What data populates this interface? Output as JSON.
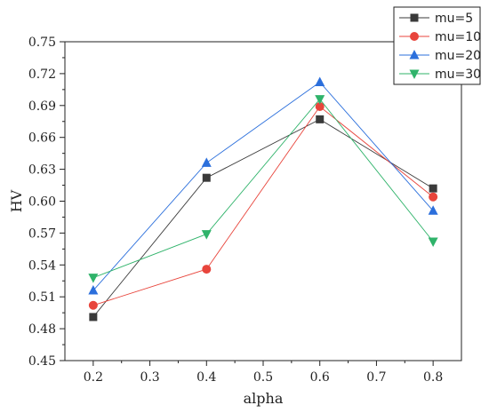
{
  "chart_data": {
    "type": "line",
    "xlabel": "alpha",
    "ylabel": "HV",
    "x": [
      0.2,
      0.4,
      0.6,
      0.8
    ],
    "xlim": [
      0.15,
      0.85
    ],
    "ylim": [
      0.45,
      0.75
    ],
    "xticks": [
      "0.2",
      "0.3",
      "0.4",
      "0.5",
      "0.6",
      "0.7",
      "0.8"
    ],
    "yticks": [
      "0.45",
      "0.48",
      "0.51",
      "0.54",
      "0.57",
      "0.60",
      "0.63",
      "0.66",
      "0.69",
      "0.72",
      "0.75"
    ],
    "grid": false,
    "legend_position": "top-right, outside plot",
    "series": [
      {
        "name": "mu=5",
        "values": [
          0.491,
          0.622,
          0.677,
          0.612
        ],
        "color": "#3a3a3a",
        "marker": "square"
      },
      {
        "name": "mu=10",
        "values": [
          0.502,
          0.536,
          0.689,
          0.604
        ],
        "color": "#e8453c",
        "marker": "circle"
      },
      {
        "name": "mu=20",
        "values": [
          0.516,
          0.636,
          0.712,
          0.591
        ],
        "color": "#2b6fdc",
        "marker": "triangle-up"
      },
      {
        "name": "mu=30",
        "values": [
          0.528,
          0.569,
          0.696,
          0.562
        ],
        "color": "#2fb36a",
        "marker": "triangle-down"
      }
    ]
  }
}
